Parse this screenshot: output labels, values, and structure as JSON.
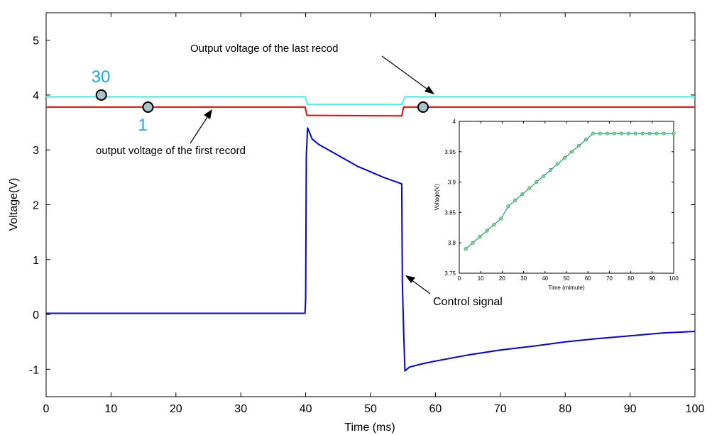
{
  "chart_data": [
    {
      "type": "line",
      "title": "",
      "xlabel": "Time (ms)",
      "ylabel": "Voltage(V)",
      "xlim": [
        0,
        100
      ],
      "ylim": [
        -1.5,
        5.5
      ],
      "xticks": [
        0,
        10,
        20,
        30,
        40,
        50,
        60,
        70,
        80,
        90,
        100
      ],
      "yticks": [
        -1,
        0,
        1,
        2,
        3,
        4,
        5
      ],
      "grid": false,
      "colors": {
        "first": "#ff0000",
        "last": "#33ffff",
        "control": "#0000e0",
        "axes": "#000000",
        "marker": "#a9c4c7"
      },
      "series": [
        {
          "key": "first",
          "x": [
            0,
            39.9,
            40.2,
            54.8,
            55.1,
            100
          ],
          "y": [
            3.78,
            3.78,
            3.63,
            3.62,
            3.78,
            3.78
          ]
        },
        {
          "key": "last",
          "x": [
            0,
            39.9,
            40.3,
            54.8,
            55.3,
            100
          ],
          "y": [
            3.97,
            3.97,
            3.83,
            3.83,
            3.97,
            3.97
          ]
        },
        {
          "key": "control",
          "x": [
            0,
            5,
            10,
            15,
            20,
            25,
            30,
            35,
            39.9,
            40.0,
            40.1,
            40.3,
            41,
            42,
            45,
            48,
            50,
            52,
            54.8,
            54.9,
            55.1,
            55.3,
            56,
            58,
            60,
            65,
            70,
            75,
            80,
            85,
            90,
            95,
            100
          ],
          "y": [
            0.02,
            0.02,
            0.02,
            0.02,
            0.02,
            0.02,
            0.02,
            0.02,
            0.02,
            0.3,
            2.9,
            3.4,
            3.2,
            3.1,
            2.9,
            2.7,
            2.6,
            2.5,
            2.38,
            0.6,
            -0.3,
            -1.03,
            -0.96,
            -0.9,
            -0.85,
            -0.74,
            -0.65,
            -0.58,
            -0.5,
            -0.44,
            -0.39,
            -0.34,
            -0.31
          ]
        }
      ],
      "markers": [
        {
          "x": 8.5,
          "y": 4.0
        },
        {
          "x": 15.7,
          "y": 3.78
        },
        {
          "x": 58.1,
          "y": 3.78
        }
      ],
      "annotations": [
        {
          "text": "30",
          "color": "#1fa8e0"
        },
        {
          "text": "1",
          "color": "#1fa8e0"
        },
        {
          "text": "Output voltage of the last recod",
          "color": "#000000"
        },
        {
          "text": "output voltage of the first record",
          "color": "#000000"
        },
        {
          "text": "Control signal",
          "color": "#000000"
        }
      ]
    },
    {
      "type": "line",
      "title": "",
      "xlabel": "Time (mimute)",
      "ylabel": "Voltage(V)",
      "xlim": [
        0,
        100
      ],
      "ylim": [
        3.75,
        4.0
      ],
      "xticks": [
        0,
        10,
        20,
        30,
        40,
        50,
        60,
        70,
        80,
        90,
        100
      ],
      "yticks": [
        3.75,
        3.8,
        3.85,
        3.9,
        3.95,
        4
      ],
      "ytick_labels": [
        "3.75",
        "3.8",
        "3.85",
        "3.9",
        "3.95",
        "4"
      ],
      "grid": false,
      "colors": {
        "line": "#008080",
        "marker": "#7be07b"
      },
      "series": [
        {
          "x": [
            3,
            6.3,
            9.6,
            12.9,
            16.2,
            19.5,
            22.8,
            26.1,
            29.4,
            32.7,
            36,
            39.3,
            42.6,
            45.9,
            49.2,
            52.5,
            55.8,
            59.1,
            62.4,
            65.7,
            69,
            72.3,
            75.6,
            78.9,
            82.2,
            85.5,
            88.8,
            92.1,
            95.4,
            100
          ],
          "y": [
            3.79,
            3.8,
            3.81,
            3.82,
            3.83,
            3.84,
            3.86,
            3.87,
            3.88,
            3.89,
            3.9,
            3.91,
            3.92,
            3.93,
            3.94,
            3.95,
            3.96,
            3.97,
            3.98,
            3.98,
            3.98,
            3.98,
            3.98,
            3.98,
            3.98,
            3.98,
            3.98,
            3.98,
            3.98,
            3.98
          ]
        }
      ]
    }
  ]
}
